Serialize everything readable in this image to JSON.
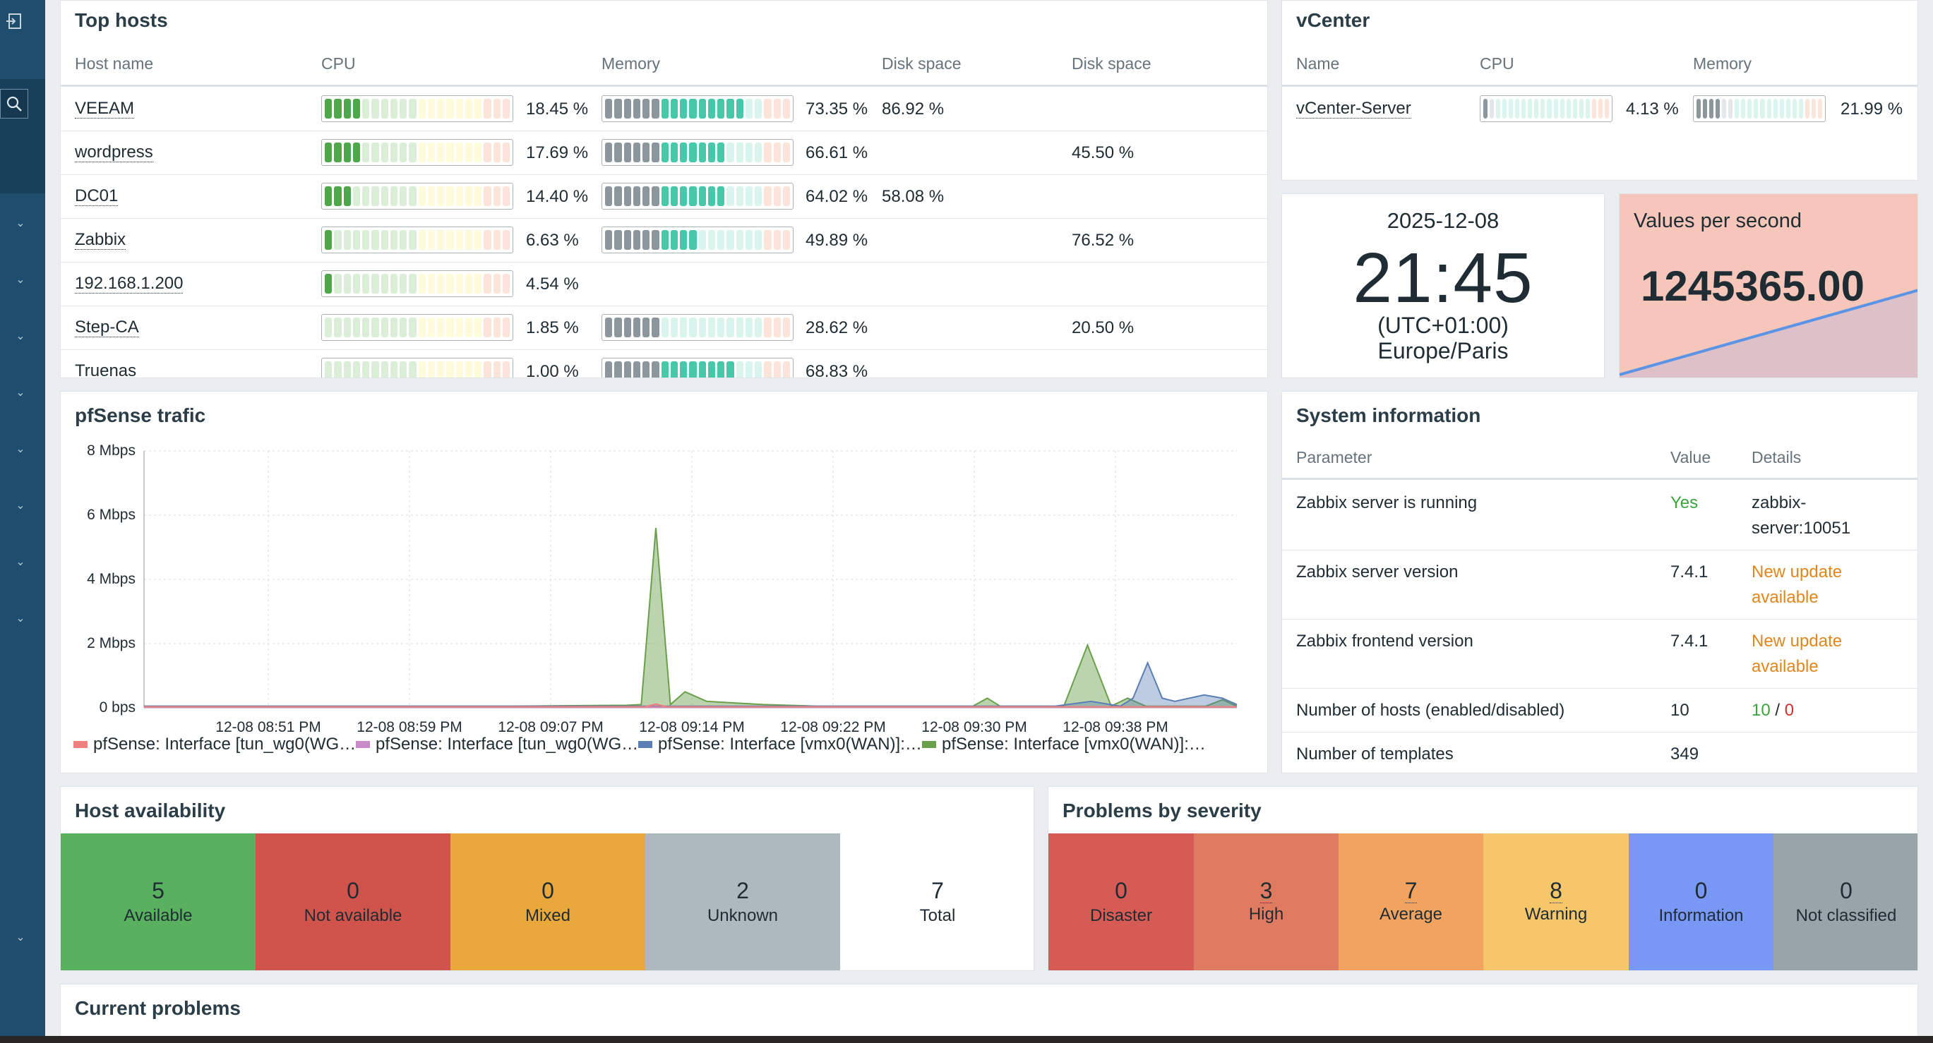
{
  "top_hosts": {
    "title": "Top hosts",
    "headers": [
      "Host name",
      "CPU",
      "Memory",
      "Disk space",
      "Disk space"
    ],
    "rows": [
      {
        "name": "VEEAM",
        "cpu": "18.45 %",
        "cpu_level": 0.18,
        "memory": "73.35 %",
        "memory_level": 0.73,
        "disk1": "86.92 %",
        "disk2": ""
      },
      {
        "name": "wordpress",
        "cpu": "17.69 %",
        "cpu_level": 0.18,
        "memory": "66.61 %",
        "memory_level": 0.67,
        "disk1": "",
        "disk2": "45.50 %"
      },
      {
        "name": "DC01",
        "cpu": "14.40 %",
        "cpu_level": 0.14,
        "memory": "64.02 %",
        "memory_level": 0.64,
        "disk1": "58.08 %",
        "disk2": ""
      },
      {
        "name": "Zabbix",
        "cpu": "6.63 %",
        "cpu_level": 0.07,
        "memory": "49.89 %",
        "memory_level": 0.5,
        "disk1": "",
        "disk2": "76.52 %"
      },
      {
        "name": "192.168.1.200",
        "cpu": "4.54 %",
        "cpu_level": 0.05,
        "memory": "",
        "memory_level": 0,
        "disk1": "",
        "disk2": ""
      },
      {
        "name": "Step-CA",
        "cpu": "1.85 %",
        "cpu_level": 0.02,
        "memory": "28.62 %",
        "memory_level": 0.29,
        "disk1": "",
        "disk2": "20.50 %"
      },
      {
        "name": "Truenas",
        "cpu": "1.00 %",
        "cpu_level": 0.01,
        "memory": "68.83 %",
        "memory_level": 0.69,
        "disk1": "",
        "disk2": ""
      }
    ]
  },
  "vcenter": {
    "title": "vCenter",
    "headers": [
      "Name",
      "CPU",
      "Memory"
    ],
    "rows": [
      {
        "name": "vCenter-Server",
        "cpu": "4.13 %",
        "cpu_level": 0.04,
        "memory": "21.99 %",
        "memory_level": 0.22
      }
    ]
  },
  "clock": {
    "date": "2025-12-08",
    "time": "21:45",
    "offset": "(UTC+01:00)",
    "zone": "Europe/Paris"
  },
  "vps": {
    "title": "Values per second",
    "value": "1245365.00"
  },
  "pfsense": {
    "title": "pfSense trafic",
    "legend": [
      {
        "label": "pfSense: Interface [tun_wg0(WG…",
        "color": "#f08080"
      },
      {
        "label": "pfSense: Interface [tun_wg0(WG…",
        "color": "#c98ac9"
      },
      {
        "label": "pfSense: Interface [vmx0(WAN)]:…",
        "color": "#5b7fb5"
      },
      {
        "label": "pfSense: Interface [vmx0(WAN)]:…",
        "color": "#6aa04b"
      }
    ]
  },
  "chart_data": {
    "type": "area",
    "title": "pfSense trafic",
    "y_ticks": [
      "8 Mbps",
      "6 Mbps",
      "4 Mbps",
      "2 Mbps",
      "0 bps"
    ],
    "x_ticks": [
      "12-08 08:51 PM",
      "12-08 08:59 PM",
      "12-08 09:07 PM",
      "12-08 09:14 PM",
      "12-08 09:22 PM",
      "12-08 09:30 PM",
      "12-08 09:38 PM"
    ],
    "ylim": [
      0,
      8
    ],
    "y_unit": "Mbps",
    "x_minutes_range": [
      0,
      60
    ],
    "series": [
      {
        "name": "pfSense: Interface [vmx0(WAN)]:…",
        "color": "#6aa04b",
        "points": [
          [
            0,
            0.05
          ],
          [
            20,
            0.05
          ],
          [
            26.5,
            0.08
          ],
          [
            27.3,
            0.1
          ],
          [
            28.1,
            5.6
          ],
          [
            28.9,
            0.1
          ],
          [
            29.7,
            0.5
          ],
          [
            30.9,
            0.2
          ],
          [
            34,
            0.1
          ],
          [
            37,
            0.05
          ],
          [
            45.5,
            0.05
          ],
          [
            46.3,
            0.3
          ],
          [
            47,
            0.05
          ],
          [
            50.5,
            0.05
          ],
          [
            51.8,
            1.95
          ],
          [
            53.1,
            0.05
          ],
          [
            54,
            0.3
          ],
          [
            55,
            0.05
          ],
          [
            58.3,
            0.05
          ],
          [
            59.2,
            0.25
          ],
          [
            60,
            0.05
          ]
        ]
      },
      {
        "name": "pfSense: Interface [vmx0(WAN)]:…",
        "color": "#5b7fb5",
        "points": [
          [
            0,
            0.05
          ],
          [
            50,
            0.05
          ],
          [
            52,
            0.2
          ],
          [
            53.6,
            0.05
          ],
          [
            54.3,
            0.3
          ],
          [
            55.1,
            1.4
          ],
          [
            55.9,
            0.3
          ],
          [
            56.6,
            0.2
          ],
          [
            58.2,
            0.4
          ],
          [
            59.2,
            0.3
          ],
          [
            60,
            0.1
          ]
        ]
      },
      {
        "name": "pfSense: Interface [tun_wg0(WG…",
        "color": "#c98ac9",
        "points": [
          [
            0,
            0.02
          ],
          [
            60,
            0.02
          ]
        ]
      },
      {
        "name": "pfSense: Interface [tun_wg0(WG…",
        "color": "#f08080",
        "points": [
          [
            0,
            0.03
          ],
          [
            27.5,
            0.03
          ],
          [
            28.1,
            0.12
          ],
          [
            28.7,
            0.03
          ],
          [
            60,
            0.03
          ]
        ]
      }
    ]
  },
  "system_info": {
    "title": "System information",
    "headers": [
      "Parameter",
      "Value",
      "Details"
    ],
    "rows": [
      {
        "param": "Zabbix server is running",
        "value": "Yes",
        "details": "zabbix-server:10051"
      },
      {
        "param": "Zabbix server version",
        "value": "7.4.1",
        "details": "New update available"
      },
      {
        "param": "Zabbix frontend version",
        "value": "7.4.1",
        "details": "New update available"
      },
      {
        "param": "Number of hosts (enabled/disabled)",
        "value": "10",
        "enabled": "10",
        "sep": "/",
        "disabled": "0"
      },
      {
        "param": "Number of templates",
        "value": "349"
      }
    ]
  },
  "host_availability": {
    "title": "Host availability",
    "tiles": [
      {
        "count": "5",
        "label": "Available",
        "color": "#59b15f"
      },
      {
        "count": "0",
        "label": "Not available",
        "color": "#d0534c"
      },
      {
        "count": "0",
        "label": "Mixed",
        "color": "#e9a73c"
      },
      {
        "count": "2",
        "label": "Unknown",
        "color": "#adb9be"
      },
      {
        "count": "7",
        "label": "Total",
        "color": "#ffffff"
      }
    ]
  },
  "problems_by_severity": {
    "title": "Problems by severity",
    "tiles": [
      {
        "count": "0",
        "label": "Disaster",
        "color": "#d65b55"
      },
      {
        "count": "3",
        "label": "High",
        "color": "#df7b61"
      },
      {
        "count": "7",
        "label": "Average",
        "color": "#f1a35f"
      },
      {
        "count": "8",
        "label": "Warning",
        "color": "#f6c66b"
      },
      {
        "count": "0",
        "label": "Information",
        "color": "#7997f5"
      },
      {
        "count": "0",
        "label": "Not classified",
        "color": "#99a4aa"
      }
    ]
  },
  "current_problems": {
    "title": "Current problems"
  }
}
